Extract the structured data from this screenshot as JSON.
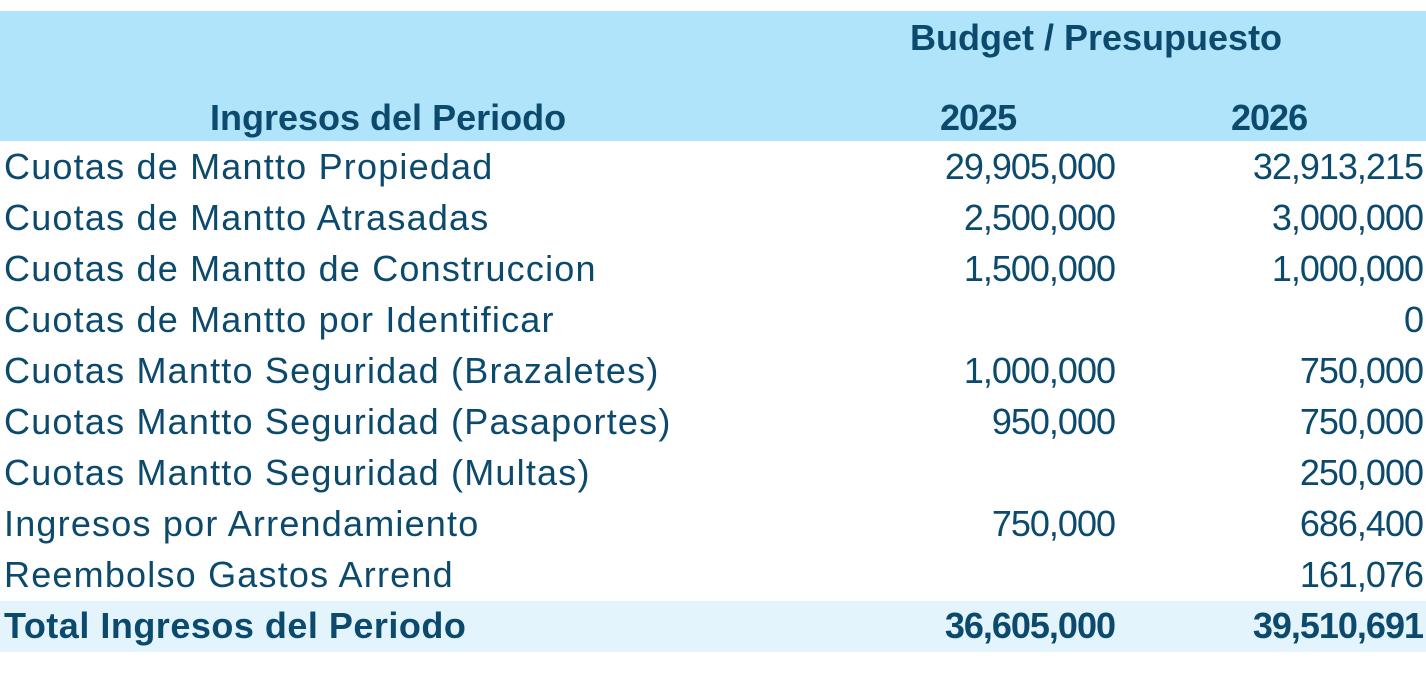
{
  "header": {
    "group_title": "Budget / Presupuesto",
    "row_header": "Ingresos del Periodo",
    "years": [
      "2025",
      "2026"
    ]
  },
  "rows": [
    {
      "label": "Cuotas de Mantto Propiedad",
      "v2025": "29,905,000",
      "v2026": "32,913,215"
    },
    {
      "label": "Cuotas de Mantto Atrasadas",
      "v2025": "2,500,000",
      "v2026": "3,000,000"
    },
    {
      "label": "Cuotas de Mantto de Construccion",
      "v2025": "1,500,000",
      "v2026": "1,000,000"
    },
    {
      "label": "Cuotas de Mantto por Identificar",
      "v2025": "",
      "v2026": "0"
    },
    {
      "label": "Cuotas Mantto Seguridad (Brazaletes)",
      "v2025": "1,000,000",
      "v2026": "750,000"
    },
    {
      "label": "Cuotas Mantto Seguridad (Pasaportes)",
      "v2025": "950,000",
      "v2026": "750,000"
    },
    {
      "label": "Cuotas Mantto Seguridad (Multas)",
      "v2025": "",
      "v2026": "250,000"
    },
    {
      "label": "Ingresos por Arrendamiento",
      "v2025": "750,000",
      "v2026": "686,400"
    },
    {
      "label": "Reembolso Gastos Arrend",
      "v2025": "",
      "v2026": "161,076"
    }
  ],
  "total": {
    "label": "Total Ingresos del Periodo",
    "v2025": "36,605,000",
    "v2026": "39,510,691"
  }
}
